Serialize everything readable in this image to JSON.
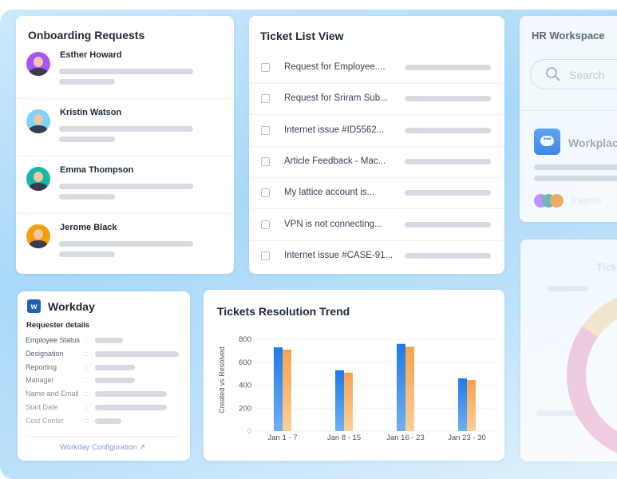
{
  "onboarding": {
    "title": "Onboarding Requests",
    "people": [
      {
        "name": "Esther Howard",
        "avatar_color": "#a855f7"
      },
      {
        "name": "Kristin Watson",
        "avatar_color": "#7dd3fc"
      },
      {
        "name": "Emma Thompson",
        "avatar_color": "#14b8a6"
      },
      {
        "name": "Jerome Black",
        "avatar_color": "#f59e0b"
      }
    ]
  },
  "ticket_list": {
    "title": "Ticket List View",
    "tickets": [
      "Request for Employee....",
      "Request for Sriram Sub...",
      "Internet issue #ID5562...",
      "Article Feedback - Mac...",
      "My lattice account is...",
      "VPN is not connecting...",
      "Internet issue #CASE-91..."
    ]
  },
  "hr_workspace": {
    "title": "HR Workspace",
    "search_placeholder": "Search",
    "app_name": "Workplace",
    "agents": "3 agents"
  },
  "workday": {
    "title": "Workday",
    "section": "Requester details",
    "fields": [
      "Employee Status",
      "Designation",
      "Reporting",
      "Manager",
      "Name and Email",
      "Start Date",
      "Cost Center"
    ],
    "separator": ":",
    "config_link": "Workday Configuration"
  },
  "faded_card": {
    "title": "Tick"
  },
  "chart_data": {
    "type": "bar",
    "title": "Tickets Resolution Trend",
    "ylabel": "Created vs Resolved",
    "xlabel": "",
    "categories": [
      "Jan 1 - 7",
      "Jan 8 - 15",
      "Jan 16 - 23",
      "Jan 23 - 30"
    ],
    "series": [
      {
        "values": [
          730,
          530,
          760,
          460
        ],
        "color": "#1e7ae6"
      },
      {
        "values": [
          710,
          510,
          735,
          445
        ],
        "color": "#f6a24e"
      }
    ],
    "ylim": [
      0,
      800
    ],
    "yticks": [
      "0",
      "200",
      "400",
      "600",
      "800"
    ],
    "grid": true
  }
}
